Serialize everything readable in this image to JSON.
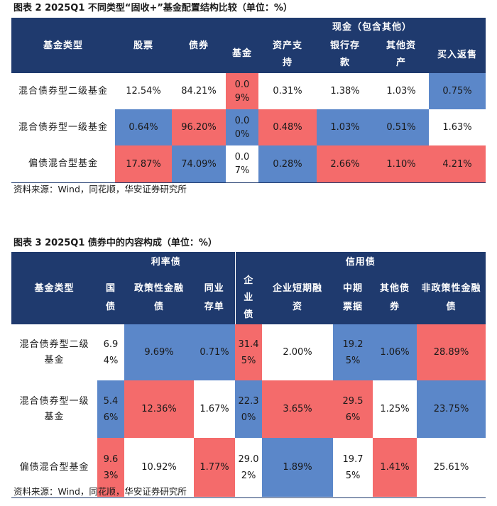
{
  "fig2": {
    "title": "图表 2 2025Q1 不同类型“固收+”基金配置结构比较（单位：%）",
    "headers": {
      "fund_type": "基金类型",
      "stock": "股票",
      "bond": "债券",
      "fund": "基金",
      "cash_group": "现金（包含其他）",
      "asset_backed": "资产支持",
      "bank_deposit": "银行存款",
      "other_assets": "其他资产",
      "reverse_repo": "买入返售"
    },
    "rows": [
      {
        "type": "混合债券型二级基金",
        "stock": "12.54%",
        "bond": "84.21%",
        "fund": "0.09%",
        "asset_backed": "0.31%",
        "bank_deposit": "1.38%",
        "other_assets": "1.03%",
        "reverse_repo": "0.75%"
      },
      {
        "type": "混合债券型一级基金",
        "stock": "0.64%",
        "bond": "96.20%",
        "fund": "0.00%",
        "asset_backed": "0.48%",
        "bank_deposit": "1.03%",
        "other_assets": "0.51%",
        "reverse_repo": "1.63%"
      },
      {
        "type": "偏债混合型基金",
        "stock": "17.87%",
        "bond": "74.09%",
        "fund": "0.07%",
        "asset_backed": "0.28%",
        "bank_deposit": "2.66%",
        "other_assets": "1.10%",
        "reverse_repo": "4.21%"
      }
    ],
    "source": "资料来源：Wind，同花顺，华安证券研究所"
  },
  "fig3": {
    "title": "图表 3 2025Q1 债券中的内容构成（单位：%）",
    "headers": {
      "fund_type": "基金类型",
      "rate_group": "利率债",
      "credit_group": "信用债",
      "treasury": "国债",
      "policy_financial": "政策性金融债",
      "interbank_cd": "同业存单",
      "corporate_bond": "企业债",
      "short_financing": "企业短期融资",
      "mtn": "中期票据",
      "other_bonds": "其他债券",
      "non_policy_financial": "非政策性金融债"
    },
    "rows": [
      {
        "type": "混合债券型二级基金",
        "treasury": "6.94%",
        "policy_financial": "9.69%",
        "interbank_cd": "0.71%",
        "corporate_bond": "31.45%",
        "short_financing": "2.00%",
        "mtn": "19.25%",
        "other_bonds": "1.06%",
        "non_policy_financial": "28.89%"
      },
      {
        "type": "混合债券型一级基金",
        "treasury": "5.46%",
        "policy_financial": "12.36%",
        "interbank_cd": "1.67%",
        "corporate_bond": "22.30%",
        "short_financing": "3.65%",
        "mtn": "29.56%",
        "other_bonds": "1.25%",
        "non_policy_financial": "23.75%"
      },
      {
        "type": "偏债混合型基金",
        "treasury": "9.63%",
        "policy_financial": "10.92%",
        "interbank_cd": "1.77%",
        "corporate_bond": "29.02%",
        "short_financing": "1.89%",
        "mtn": "19.75%",
        "other_bonds": "1.41%",
        "non_policy_financial": "25.61%"
      }
    ],
    "source": "资料来源：Wind，同花顺，华安证券研究所"
  }
}
